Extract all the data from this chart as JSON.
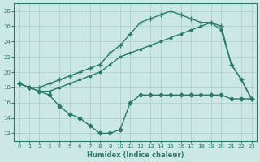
{
  "xlabel": "Humidex (Indice chaleur)",
  "bg_color": "#cce8e4",
  "grid_color": "#aacccc",
  "line_color": "#2a7a6a",
  "xlim": [
    -0.5,
    23.5
  ],
  "ylim": [
    11,
    29
  ],
  "yticks": [
    12,
    14,
    16,
    18,
    20,
    22,
    24,
    26,
    28
  ],
  "xticks": [
    0,
    1,
    2,
    3,
    4,
    5,
    6,
    7,
    8,
    9,
    10,
    11,
    12,
    13,
    14,
    15,
    16,
    17,
    18,
    19,
    20,
    21,
    22,
    23
  ],
  "series": [
    {
      "x": [
        0,
        1,
        2,
        3,
        4,
        5,
        6,
        7,
        8,
        9,
        10,
        11,
        12,
        13,
        14,
        15,
        16,
        17,
        18,
        19,
        20,
        21,
        22,
        23
      ],
      "y": [
        18.5,
        18.0,
        18.0,
        18.5,
        19.0,
        19.5,
        20.0,
        20.5,
        21.0,
        22.5,
        23.5,
        25.0,
        26.5,
        27.0,
        27.5,
        28.0,
        27.5,
        27.0,
        26.5,
        26.5,
        26.0,
        21.0,
        19.0,
        16.5
      ],
      "marker": "+",
      "markersize": 4.5,
      "linewidth": 1.0
    },
    {
      "x": [
        0,
        1,
        2,
        3,
        4,
        5,
        6,
        7,
        8,
        9,
        10,
        11,
        12,
        13,
        14,
        15,
        16,
        17,
        18,
        19,
        20,
        21,
        22,
        23
      ],
      "y": [
        18.5,
        18.0,
        17.5,
        17.5,
        18.0,
        18.5,
        19.0,
        19.5,
        20.0,
        21.0,
        22.0,
        22.5,
        23.0,
        23.5,
        24.0,
        24.5,
        25.0,
        25.5,
        26.0,
        26.5,
        25.5,
        21.0,
        19.0,
        16.5
      ],
      "marker": ".",
      "markersize": 3.5,
      "linewidth": 1.0
    },
    {
      "x": [
        0,
        1,
        2,
        3,
        4,
        5,
        6,
        7,
        8,
        9,
        10,
        11,
        12,
        13,
        14,
        15,
        16,
        17,
        18,
        19,
        20,
        21,
        22,
        23
      ],
      "y": [
        18.5,
        18.0,
        17.5,
        17.0,
        15.5,
        14.5,
        14.0,
        13.0,
        12.0,
        12.0,
        12.5,
        16.0,
        17.0,
        17.0,
        17.0,
        17.0,
        17.0,
        17.0,
        17.0,
        17.0,
        17.0,
        16.5,
        16.5,
        16.5
      ],
      "marker": "D",
      "markersize": 2.5,
      "linewidth": 1.0
    }
  ]
}
